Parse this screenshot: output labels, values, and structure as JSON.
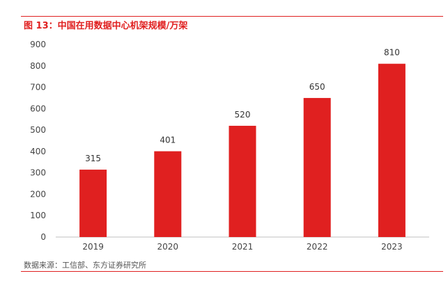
{
  "header": {
    "title": "图 13：中国在用数据中心机架规模/万架"
  },
  "footer": {
    "source": "数据来源：工信部、东方证券研究所"
  },
  "colors": {
    "accent": "#e02020",
    "bar": "#e02020"
  },
  "chart_data": {
    "type": "bar",
    "title": "图 13：中国在用数据中心机架规模/万架",
    "categories": [
      "2019",
      "2020",
      "2021",
      "2022",
      "2023"
    ],
    "values": [
      315,
      401,
      520,
      650,
      810
    ],
    "data_labels": [
      "315",
      "401",
      "520",
      "650",
      "810"
    ],
    "yticks": [
      "0",
      "100",
      "200",
      "300",
      "400",
      "500",
      "600",
      "700",
      "800",
      "900"
    ],
    "ylim": [
      0,
      900
    ],
    "grid": false,
    "legend": "none"
  }
}
